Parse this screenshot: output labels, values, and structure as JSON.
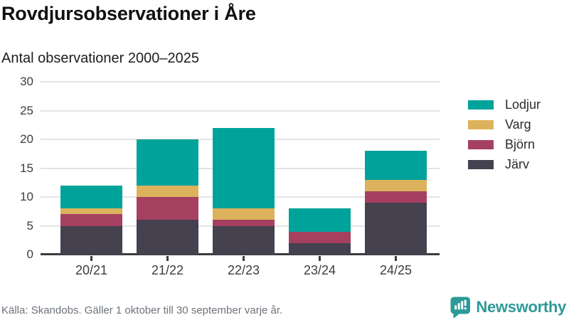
{
  "chart_data": {
    "type": "bar",
    "stacked": true,
    "title": "Rovdjursobservationer i Åre",
    "subtitle": "Antal observationer 2000–2025",
    "source_note": "Källa: Skandobs. Gäller 1 oktober till 30 september varje år.",
    "categories": [
      "20/21",
      "21/22",
      "22/23",
      "23/24",
      "24/25"
    ],
    "series": [
      {
        "name": "Järv",
        "color": "#45414f",
        "values": [
          5,
          6,
          5,
          2,
          9
        ]
      },
      {
        "name": "Björn",
        "color": "#a64061",
        "values": [
          2,
          4,
          1,
          2,
          2
        ]
      },
      {
        "name": "Varg",
        "color": "#dcb35c",
        "values": [
          1,
          2,
          2,
          0,
          2
        ]
      },
      {
        "name": "Lodjur",
        "color": "#00a39a",
        "values": [
          4,
          8,
          14,
          4,
          5
        ]
      }
    ],
    "totals": [
      12,
      20,
      22,
      8,
      18
    ],
    "ylim": [
      0,
      30
    ],
    "yticks": [
      0,
      5,
      10,
      15,
      20,
      25,
      30
    ],
    "grid": "horizontal",
    "legend_position": "right",
    "legend_order": [
      "Lodjur",
      "Varg",
      "Björn",
      "Järv"
    ]
  },
  "branding": {
    "name": "Newsworthy",
    "icon": "bar-chart-speech-bubble",
    "color": "#2e9a98"
  },
  "colors": {
    "teal": "#00a39a",
    "gold": "#dcb35c",
    "maroon": "#a64061",
    "dark_slate": "#45414f",
    "gridline": "#e4e4e4",
    "axis": "#3b3b40",
    "tick_text": "#3d3d3d",
    "title_text": "#111111",
    "muted_text": "#6e737b",
    "brand_teal": "#2e9a98"
  }
}
